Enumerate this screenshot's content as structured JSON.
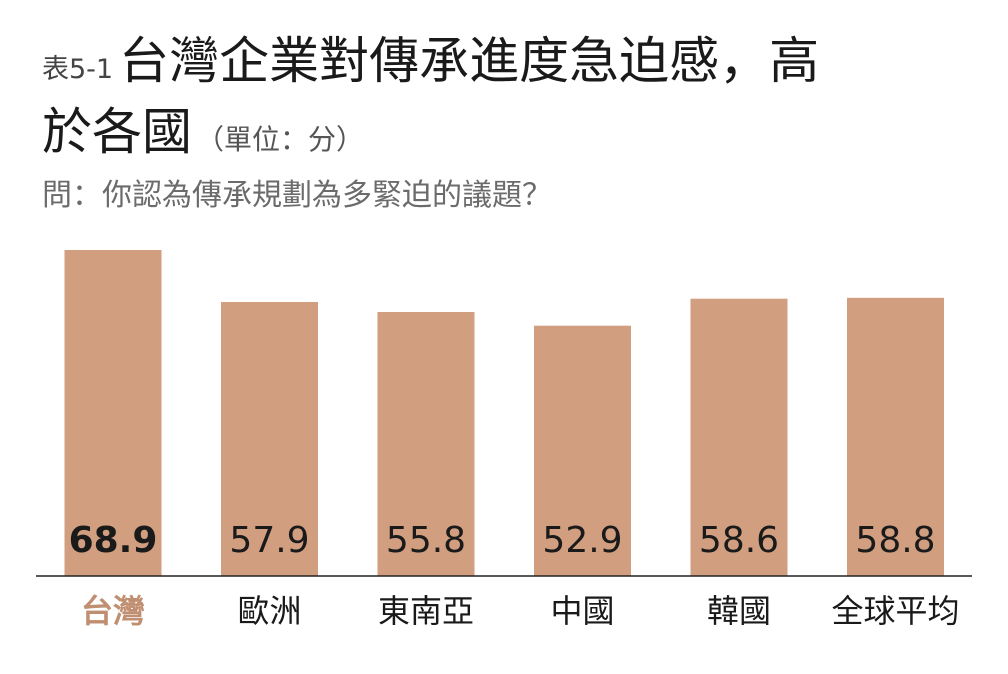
{
  "header": {
    "prefix": "表5-1",
    "title_line1": "台灣企業對傳承進度急迫感，高",
    "title_line2": "於各國",
    "unit": "（單位：分）",
    "question": "問：你認為傳承規劃為多緊迫的議題？"
  },
  "colors": {
    "bar": "#d19e80",
    "highlight_label": "#c08e70",
    "axis": "#222222",
    "text": "#1a1a1a"
  },
  "chart_data": {
    "type": "bar",
    "categories": [
      "台灣",
      "歐洲",
      "東南亞",
      "中國",
      "韓國",
      "全球平均"
    ],
    "values": [
      68.9,
      57.9,
      55.8,
      52.9,
      58.6,
      58.8
    ],
    "value_labels": [
      "68.9",
      "57.9",
      "55.8",
      "52.9",
      "58.6",
      "58.8"
    ],
    "highlight_index": 0,
    "title": "台灣企業對傳承進度急迫感，高於各國",
    "xlabel": "",
    "ylabel": "",
    "ylim": [
      0,
      70
    ],
    "grid": false,
    "legend": "none"
  }
}
